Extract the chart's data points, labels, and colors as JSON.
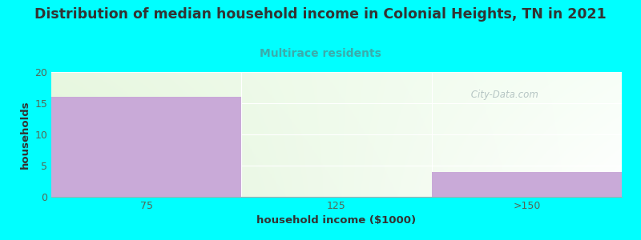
{
  "title": "Distribution of median household income in Colonial Heights, TN in 2021",
  "subtitle": "Multirace residents",
  "xlabel": "household income ($1000)",
  "ylabel": "households",
  "categories": [
    "75",
    "125",
    ">150"
  ],
  "values": [
    16,
    0,
    4
  ],
  "bar_color": "#c9aad8",
  "background_color": "#00ffff",
  "plot_bg_topleft": "#e8f5e0",
  "plot_bg_topright": "#f8fff8",
  "plot_bg_bottomleft": "#dff0d8",
  "plot_bg_bottomright": "#ffffff",
  "title_color": "#333333",
  "subtitle_color": "#3aacac",
  "axis_color": "#556655",
  "ylim": [
    0,
    20
  ],
  "yticks": [
    0,
    5,
    10,
    15,
    20
  ],
  "watermark": " City-Data.com",
  "watermark_color": "#aabbbb",
  "title_fontsize": 12.5,
  "subtitle_fontsize": 10,
  "label_fontsize": 9.5,
  "tick_fontsize": 9
}
